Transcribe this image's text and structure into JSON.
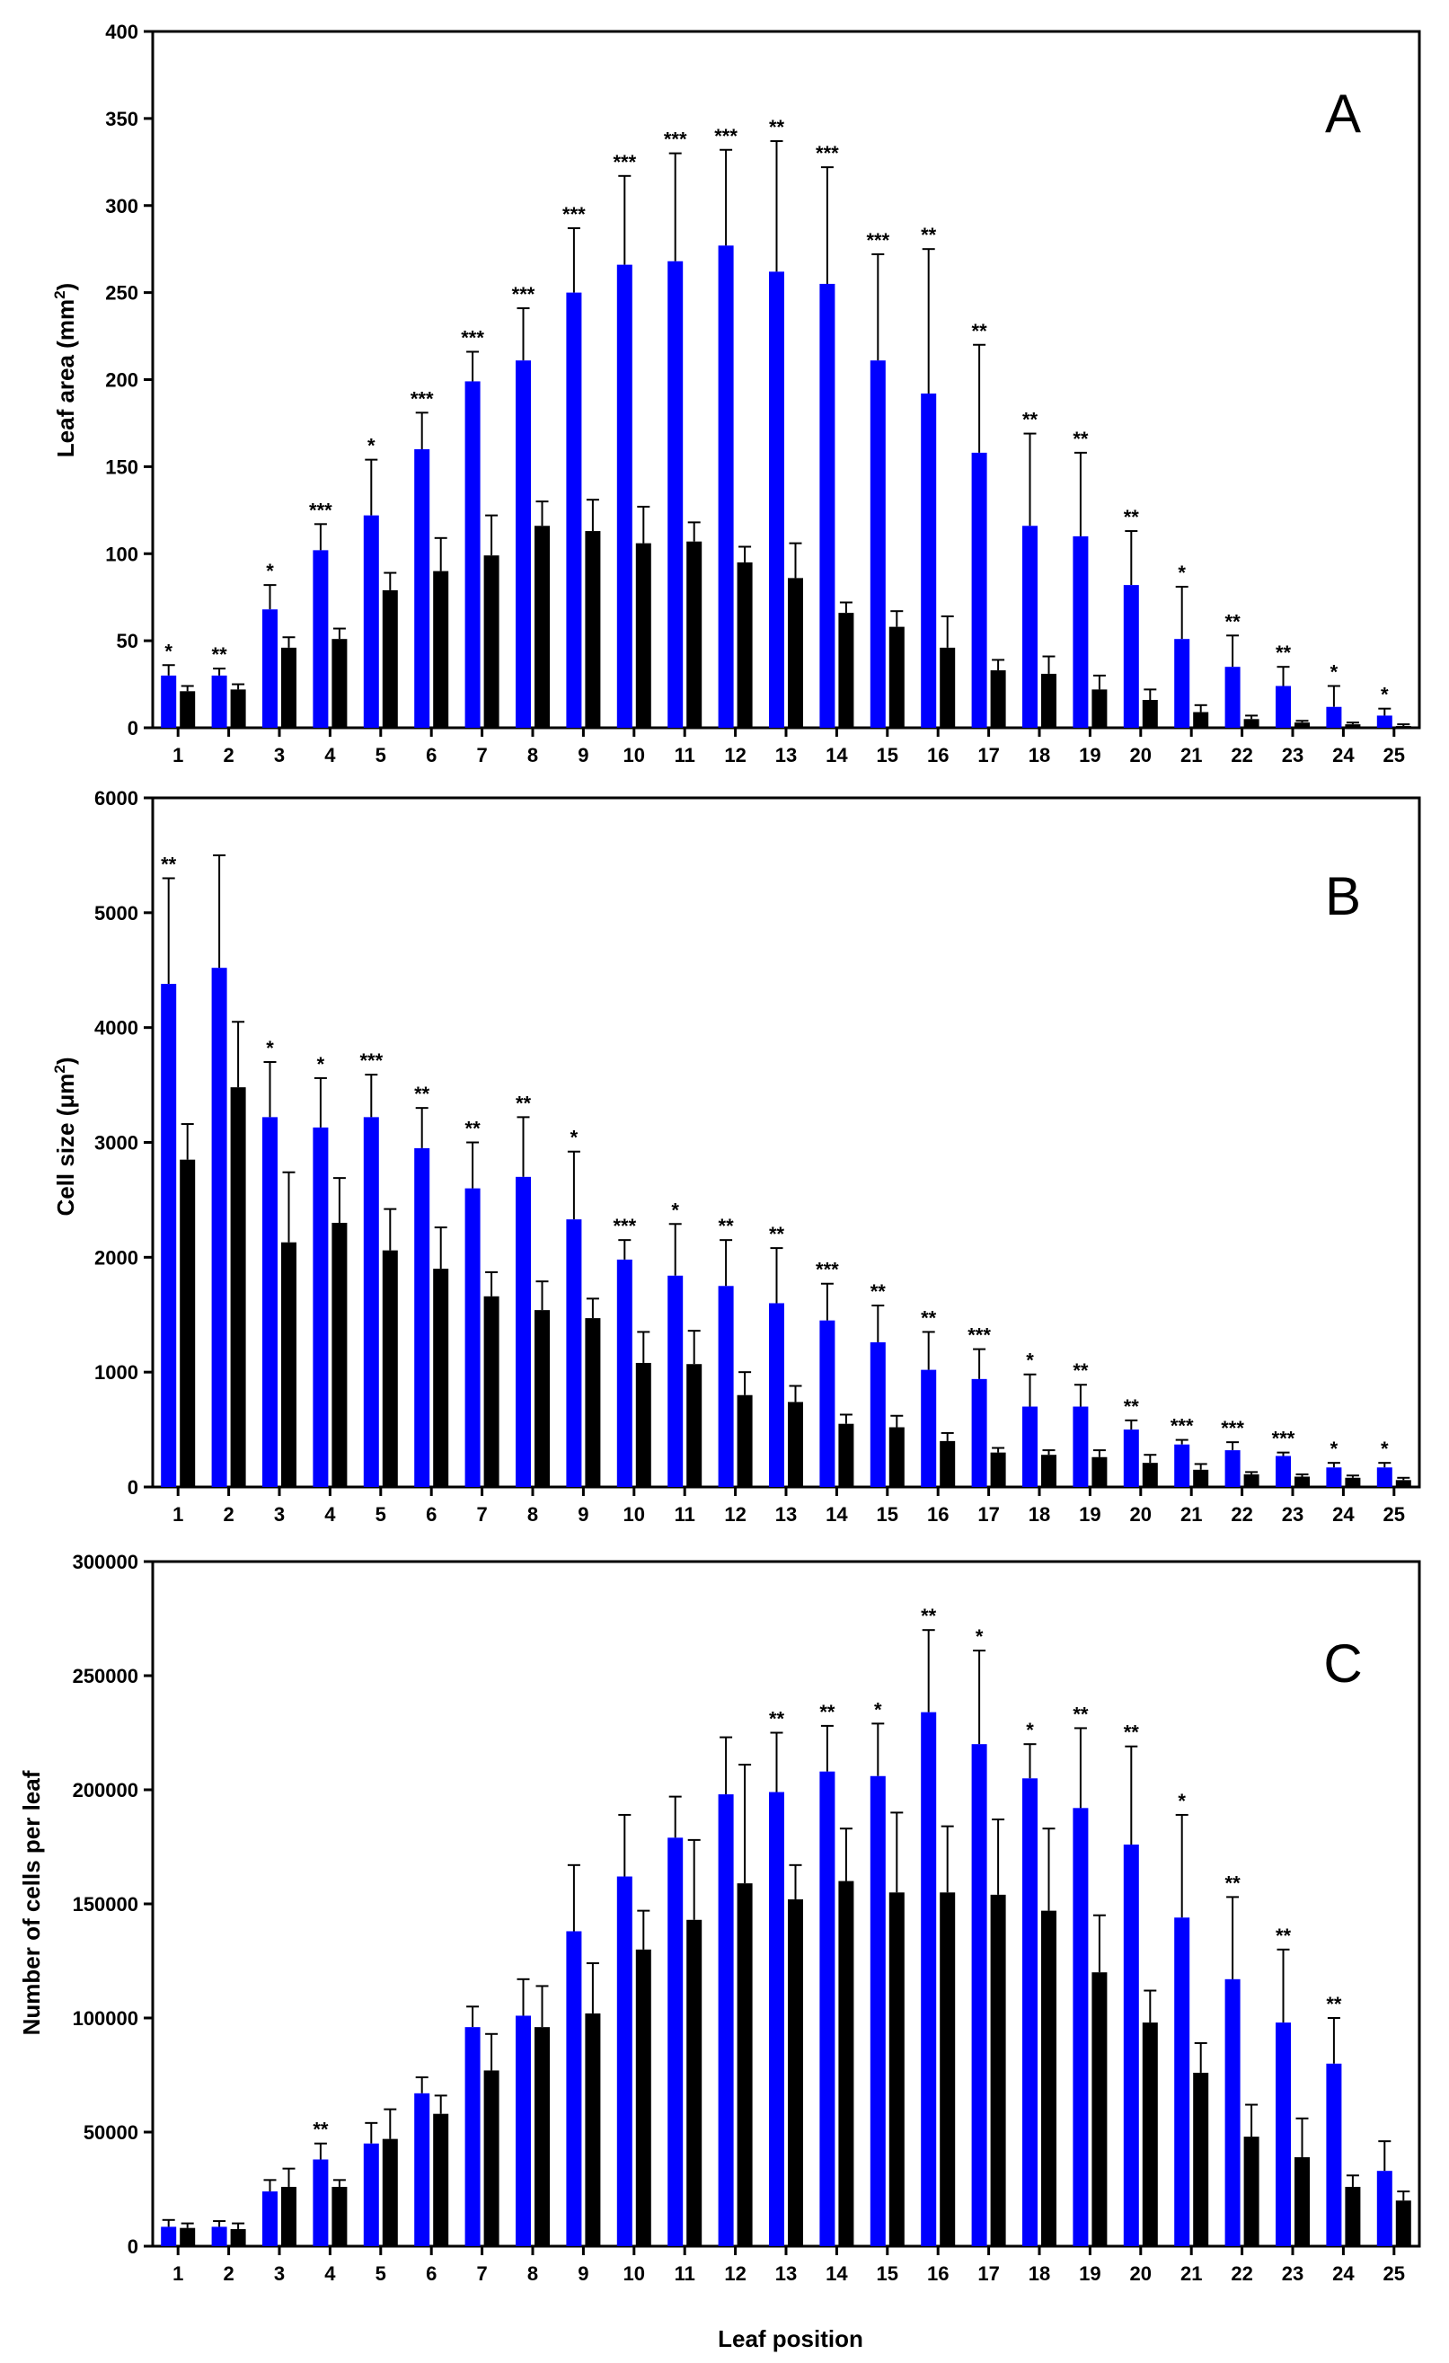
{
  "chart_data": [
    {
      "type": "bar",
      "panel_label": "A",
      "ylabel": "Leaf area (mm²)",
      "ylabel_main": "Leaf area (mm",
      "ylabel_sup": "2",
      "ylabel_end": ")",
      "xlabel": "",
      "ylim": [
        0,
        400
      ],
      "yticks": [
        0,
        50,
        100,
        150,
        200,
        250,
        300,
        350,
        400
      ],
      "ytick_labels": [
        "0",
        "50",
        "100",
        "150",
        "200",
        "250",
        "300",
        "350",
        "400"
      ],
      "categories": [
        "1",
        "2",
        "3",
        "4",
        "5",
        "6",
        "7",
        "8",
        "9",
        "10",
        "11",
        "12",
        "13",
        "14",
        "15",
        "16",
        "17",
        "18",
        "19",
        "20",
        "21",
        "22",
        "23",
        "24",
        "25"
      ],
      "series": [
        {
          "name": "blue",
          "color": "#0000ff",
          "values": [
            30,
            30,
            68,
            102,
            122,
            160,
            199,
            211,
            250,
            266,
            268,
            277,
            262,
            255,
            211,
            192,
            158,
            116,
            110,
            82,
            51,
            35,
            24,
            12,
            7
          ],
          "errors": [
            6,
            4,
            14,
            15,
            32,
            21,
            17,
            30,
            37,
            51,
            62,
            55,
            75,
            67,
            61,
            83,
            62,
            53,
            48,
            31,
            30,
            18,
            11,
            12,
            4
          ]
        },
        {
          "name": "black",
          "color": "#000000",
          "values": [
            21,
            22,
            46,
            51,
            79,
            90,
            99,
            116,
            113,
            106,
            107,
            95,
            86,
            66,
            58,
            46,
            33,
            31,
            22,
            16,
            9,
            5,
            3,
            2,
            1
          ],
          "errors": [
            3,
            3,
            6,
            6,
            10,
            19,
            23,
            14,
            18,
            21,
            11,
            9,
            20,
            6,
            9,
            18,
            6,
            10,
            8,
            6,
            4,
            2,
            1,
            1,
            1
          ]
        }
      ],
      "annotations": [
        "*",
        "**",
        "*",
        "***",
        "*",
        "***",
        "***",
        "***",
        "***",
        "***",
        "***",
        "***",
        "**",
        "***",
        "***",
        "**",
        "**",
        "**",
        "**",
        "**",
        "*",
        "**",
        "**",
        "*",
        "*"
      ]
    },
    {
      "type": "bar",
      "panel_label": "B",
      "ylabel": "Cell size (μm²)",
      "ylabel_main": "Cell size (μm",
      "ylabel_sup": "2",
      "ylabel_end": ")",
      "xlabel": "",
      "ylim": [
        0,
        6000
      ],
      "yticks": [
        0,
        1000,
        2000,
        3000,
        4000,
        5000,
        6000
      ],
      "ytick_labels": [
        "0",
        "1000",
        "2000",
        "3000",
        "4000",
        "5000",
        "6000"
      ],
      "categories": [
        "1",
        "2",
        "3",
        "4",
        "5",
        "6",
        "7",
        "8",
        "9",
        "10",
        "11",
        "12",
        "13",
        "14",
        "15",
        "16",
        "17",
        "18",
        "19",
        "20",
        "21",
        "22",
        "23",
        "24",
        "25"
      ],
      "series": [
        {
          "name": "blue",
          "color": "#0000ff",
          "values": [
            4380,
            4520,
            3220,
            3130,
            3220,
            2950,
            2600,
            2700,
            2330,
            1980,
            1840,
            1750,
            1600,
            1450,
            1260,
            1020,
            940,
            700,
            700,
            500,
            370,
            320,
            270,
            170,
            170
          ],
          "errors": [
            920,
            980,
            480,
            430,
            370,
            350,
            400,
            520,
            590,
            170,
            450,
            400,
            480,
            320,
            320,
            330,
            260,
            280,
            190,
            80,
            40,
            70,
            30,
            40,
            40
          ]
        },
        {
          "name": "black",
          "color": "#000000",
          "values": [
            2850,
            3480,
            2130,
            2300,
            2060,
            1900,
            1660,
            1540,
            1470,
            1080,
            1070,
            800,
            740,
            550,
            520,
            400,
            300,
            280,
            260,
            210,
            150,
            110,
            90,
            80,
            60
          ],
          "errors": [
            310,
            570,
            610,
            390,
            360,
            360,
            210,
            250,
            170,
            270,
            290,
            200,
            140,
            80,
            100,
            70,
            40,
            40,
            60,
            70,
            50,
            20,
            20,
            20,
            20
          ]
        }
      ],
      "annotations": [
        "**",
        "",
        "*",
        "*",
        "***",
        "**",
        "**",
        "**",
        "*",
        "***",
        "*",
        "**",
        "**",
        "***",
        "**",
        "**",
        "***",
        "*",
        "**",
        "**",
        "***",
        "***",
        "***",
        "*",
        "*"
      ]
    },
    {
      "type": "bar",
      "panel_label": "C",
      "ylabel": "Number of cells per leaf",
      "ylabel_main": "Number of cells per leaf",
      "ylabel_sup": "",
      "ylabel_end": "",
      "xlabel": "Leaf position",
      "ylim": [
        0,
        300000
      ],
      "yticks": [
        0,
        50000,
        100000,
        150000,
        200000,
        250000,
        300000
      ],
      "ytick_labels": [
        "0",
        "50000",
        "100000",
        "150000",
        "200000",
        "250000",
        "300000"
      ],
      "categories": [
        "1",
        "2",
        "3",
        "4",
        "5",
        "6",
        "7",
        "8",
        "9",
        "10",
        "11",
        "12",
        "13",
        "14",
        "15",
        "16",
        "17",
        "18",
        "19",
        "20",
        "21",
        "22",
        "23",
        "24",
        "25"
      ],
      "series": [
        {
          "name": "blue",
          "color": "#0000ff",
          "values": [
            8500,
            8500,
            24000,
            38000,
            45000,
            67000,
            96000,
            101000,
            138000,
            162000,
            179000,
            198000,
            199000,
            208000,
            206000,
            234000,
            220000,
            205000,
            192000,
            176000,
            144000,
            117000,
            98000,
            80000,
            33000
          ],
          "errors": [
            3000,
            2500,
            5000,
            7000,
            9000,
            7000,
            9000,
            16000,
            29000,
            27000,
            18000,
            25000,
            26000,
            20000,
            23000,
            36000,
            41000,
            15000,
            35000,
            43000,
            45000,
            36000,
            32000,
            20000,
            13000
          ]
        },
        {
          "name": "black",
          "color": "#000000",
          "values": [
            8000,
            7500,
            26000,
            26000,
            47000,
            58000,
            77000,
            96000,
            102000,
            130000,
            143000,
            159000,
            152000,
            160000,
            155000,
            155000,
            154000,
            147000,
            120000,
            98000,
            76000,
            48000,
            39000,
            26000,
            20000
          ],
          "errors": [
            2000,
            2500,
            8000,
            3000,
            13000,
            8000,
            16000,
            18000,
            22000,
            17000,
            35000,
            52000,
            15000,
            23000,
            35000,
            29000,
            33000,
            36000,
            25000,
            14000,
            13000,
            14000,
            17000,
            5000,
            4000
          ]
        }
      ],
      "annotations": [
        "",
        "",
        "",
        "**",
        "",
        "",
        "",
        "",
        "",
        "",
        "",
        "",
        "**",
        "**",
        "*",
        "**",
        "*",
        "*",
        "**",
        "**",
        "*",
        "**",
        "**",
        "**",
        ""
      ]
    }
  ]
}
